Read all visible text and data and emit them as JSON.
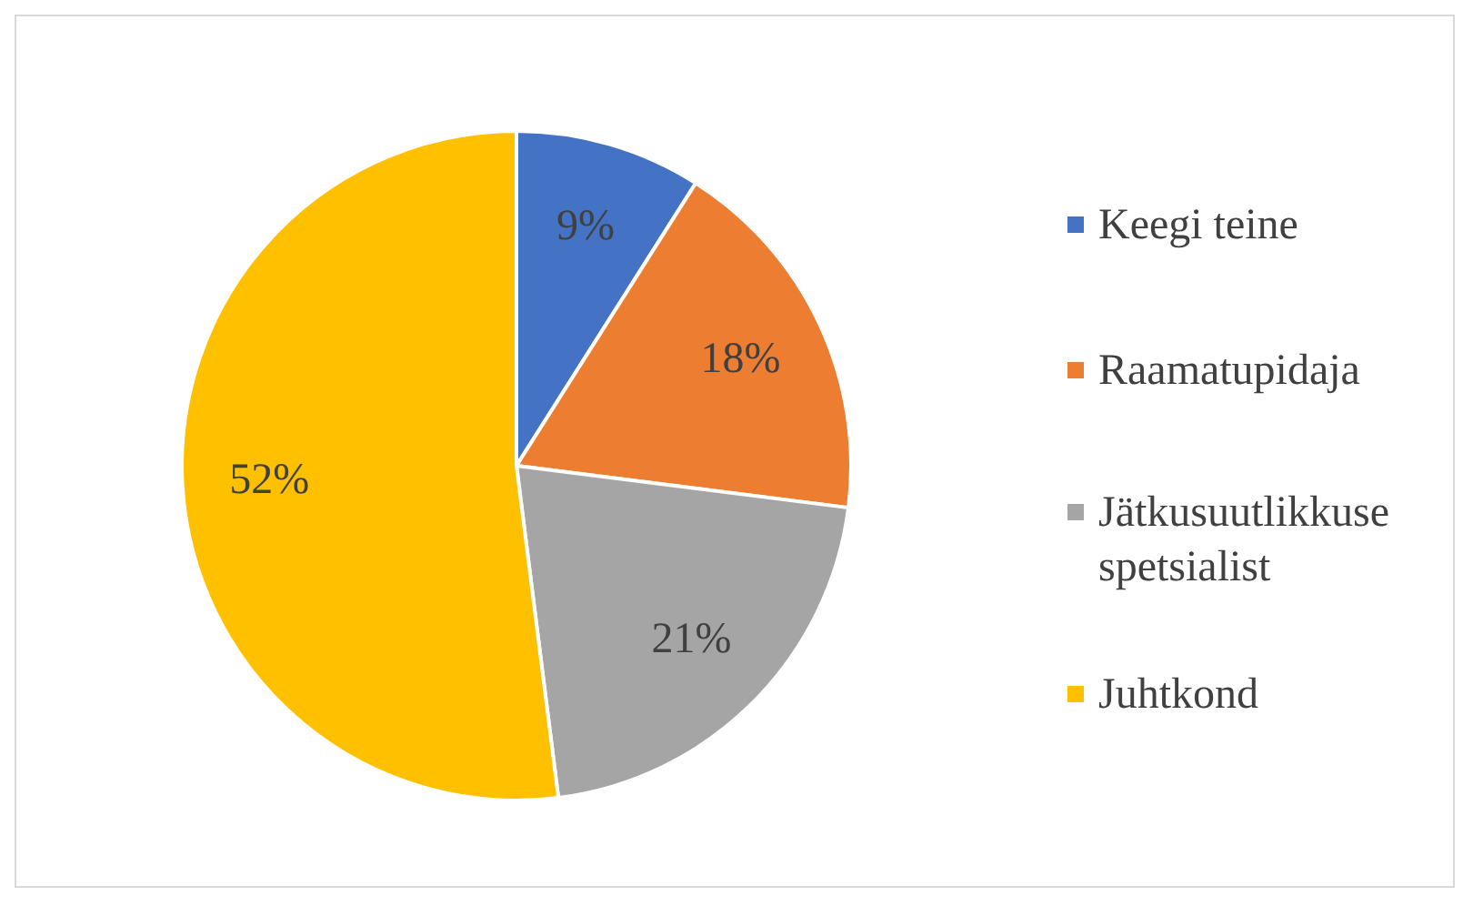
{
  "chart_data": {
    "type": "pie",
    "categories": [
      "Keegi teine",
      "Raamatupidaja",
      "Jätkusuutlikkuse spetsialist",
      "Juhtkond"
    ],
    "values": [
      9,
      18,
      21,
      52
    ],
    "colors": [
      "#4472c4",
      "#ed7d31",
      "#a5a5a5",
      "#ffc000"
    ],
    "value_labels": [
      "9%",
      "18%",
      "21%",
      "52%"
    ],
    "legend": "right"
  }
}
